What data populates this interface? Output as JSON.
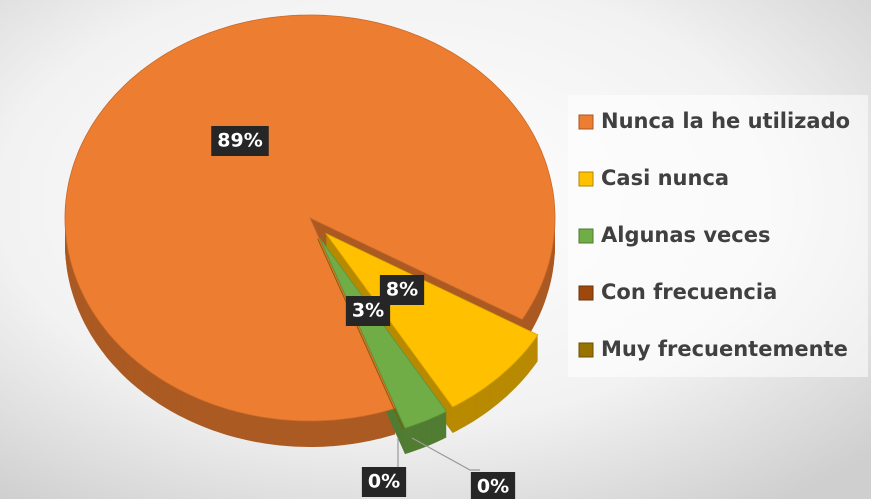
{
  "chart_data": {
    "type": "pie",
    "categories": [
      "Nunca la he utilizado",
      "Casi nunca",
      "Algunas veces",
      "Con frecuencia",
      "Muy frecuentemente"
    ],
    "values": [
      89,
      8,
      3,
      0,
      0
    ],
    "value_labels": [
      "89%",
      "8%",
      "3%",
      "0%",
      "0%"
    ],
    "colors": [
      "#ED7D31",
      "#FFC000",
      "#70AD47",
      "#9E480E",
      "#997300"
    ],
    "legend": "right"
  }
}
